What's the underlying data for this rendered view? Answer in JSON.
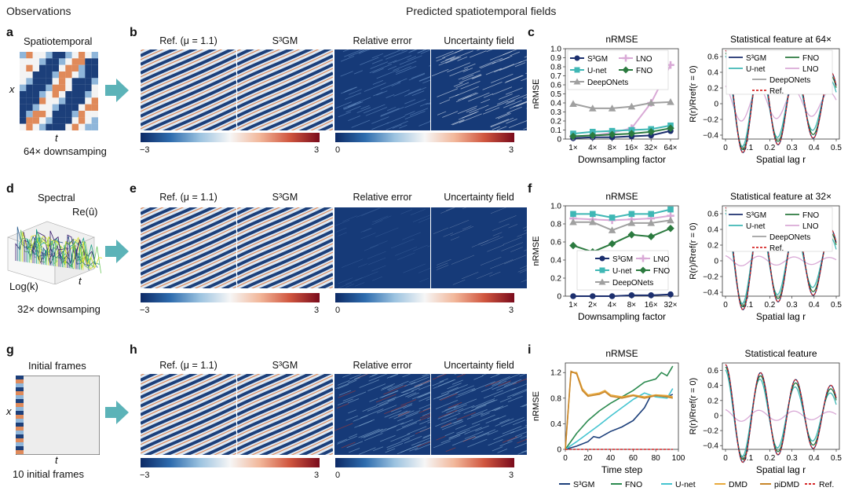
{
  "headers": {
    "observations": "Observations",
    "predicted": "Predicted spatiotemporal fields"
  },
  "rows": [
    {
      "obs_letter": "a",
      "obs_title": "Spatiotemporal",
      "obs_caption": "64× downsamping",
      "axis_x": "x",
      "axis_t": "t",
      "fields_letter": "b",
      "field_titles": [
        "Ref. (μ = 1.1)",
        "S³GM",
        "Relative error",
        "Uncertainty field"
      ],
      "plot_letter": "c"
    },
    {
      "obs_letter": "d",
      "obs_title": "Spectral",
      "obs_caption": "32× downsamping",
      "axis_re": "Re(û)",
      "axis_logk": "Log(k)",
      "axis_t": "t",
      "fields_letter": "e",
      "field_titles": [
        "Ref. (μ = 1.1)",
        "S³GM",
        "Relative error",
        "Uncertainty field"
      ],
      "plot_letter": "f"
    },
    {
      "obs_letter": "g",
      "obs_title": "Initial frames",
      "obs_caption": "10 initial frames",
      "axis_x": "x",
      "axis_t": "t",
      "fields_letter": "h",
      "field_titles": [
        "Ref. (μ = 1.1)",
        "S³GM",
        "Relative error",
        "Uncertainty field"
      ],
      "plot_letter": "i"
    }
  ],
  "colorbars": {
    "left_min": "−3",
    "left_max": "3",
    "right_min": "0",
    "right_max": "3"
  },
  "colors": {
    "dark_blue": "#1c3f7a",
    "light_blue": "#c9ddf0",
    "orange": "#e08a5a",
    "arrow": "#5cb3b8"
  },
  "chart_data": [
    {
      "panel": "c",
      "type": "line",
      "title": "nRMSE",
      "xlabel": "Downsampling factor",
      "ylabel": "nRMSE",
      "categories": [
        "1×",
        "4×",
        "8×",
        "16×",
        "32×",
        "64×"
      ],
      "ylim": [
        0,
        1.0
      ],
      "yticks": [
        "0",
        "0.1",
        "0.2",
        "0.3",
        "0.4",
        "0.5",
        "0.6",
        "0.7",
        "0.8",
        "0.9",
        "1.0"
      ],
      "legend": "top-left",
      "series": [
        {
          "name": "S³GM",
          "color": "#1c2f6e",
          "marker": "circle",
          "values": [
            0.01,
            0.02,
            0.02,
            0.03,
            0.04,
            0.09
          ]
        },
        {
          "name": "LNO",
          "color": "#d9a9d6",
          "marker": "plus",
          "values": [
            0.03,
            0.04,
            0.07,
            0.12,
            0.4,
            0.82
          ]
        },
        {
          "name": "U-net",
          "color": "#3fb7b5",
          "marker": "square",
          "values": [
            0.06,
            0.08,
            0.09,
            0.1,
            0.11,
            0.15
          ]
        },
        {
          "name": "FNO",
          "color": "#2b7a3f",
          "marker": "diamond",
          "values": [
            0.03,
            0.04,
            0.05,
            0.06,
            0.08,
            0.12
          ]
        },
        {
          "name": "DeepONets",
          "color": "#a0a0a0",
          "marker": "triangle",
          "values": [
            0.39,
            0.34,
            0.34,
            0.36,
            0.4,
            0.41
          ]
        }
      ]
    },
    {
      "panel": "c-right",
      "type": "line",
      "title": "Statistical feature at 64×",
      "xlabel": "Spatial lag r",
      "ylabel": "R(r)/Rref(r = 0)",
      "xlim": [
        0,
        0.5
      ],
      "ylim": [
        -0.45,
        0.7
      ],
      "xticks": [
        "0",
        "0.1",
        "0.2",
        "0.3",
        "0.4",
        "0.5"
      ],
      "yticks": [
        "−0.4",
        "−0.2",
        "0",
        "0.2",
        "0.4",
        "0.6"
      ],
      "legend_names": [
        "S³GM",
        "FNO",
        "U-net",
        "LNO",
        "DeepONets",
        "Ref."
      ],
      "legend_colors": [
        "#1c2f6e",
        "#2b7a3f",
        "#3fb7b5",
        "#d9a9d6",
        "#a0a0a0",
        "#d62728"
      ],
      "curves": {
        "damp": 7,
        "freq": 12.6,
        "lno_amp": 0.35
      }
    },
    {
      "panel": "f",
      "type": "line",
      "title": "nRMSE",
      "xlabel": "Downsampling factor",
      "ylabel": "nRMSE",
      "categories": [
        "1×",
        "2×",
        "4×",
        "8×",
        "16×",
        "32×"
      ],
      "ylim": [
        0,
        1.0
      ],
      "yticks": [
        "0",
        "0.2",
        "0.4",
        "0.6",
        "0.8",
        "1.0"
      ],
      "legend": "bottom-center",
      "series": [
        {
          "name": "S³GM",
          "color": "#1c2f6e",
          "marker": "circle",
          "values": [
            0.0,
            0.0,
            0.0,
            0.01,
            0.01,
            0.02
          ]
        },
        {
          "name": "LNO",
          "color": "#d9a9d6",
          "marker": "plus",
          "values": [
            0.86,
            0.85,
            0.84,
            0.85,
            0.86,
            0.89
          ]
        },
        {
          "name": "U-net",
          "color": "#3fb7b5",
          "marker": "square",
          "values": [
            0.91,
            0.91,
            0.87,
            0.91,
            0.91,
            0.96
          ]
        },
        {
          "name": "FNO",
          "color": "#2b7a3f",
          "marker": "diamond",
          "values": [
            0.56,
            0.49,
            0.58,
            0.68,
            0.66,
            0.75
          ]
        },
        {
          "name": "DeepONets",
          "color": "#a0a0a0",
          "marker": "triangle",
          "values": [
            0.82,
            0.82,
            0.73,
            0.81,
            0.81,
            0.84
          ]
        }
      ]
    },
    {
      "panel": "f-right",
      "type": "line",
      "title": "Statistical feature at 32×",
      "xlabel": "Spatial lag r",
      "ylabel": "R(r)/Rref(r = 0)",
      "xlim": [
        0,
        0.5
      ],
      "ylim": [
        -0.45,
        0.7
      ],
      "xticks": [
        "0",
        "0.1",
        "0.2",
        "0.3",
        "0.4",
        "0.5"
      ],
      "yticks": [
        "−0.4",
        "−0.2",
        "0",
        "0.2",
        "0.4",
        "0.6"
      ],
      "legend_names": [
        "S³GM",
        "FNO",
        "U-net",
        "LNO",
        "DeepONets",
        "Ref."
      ],
      "legend_colors": [
        "#1c2f6e",
        "#2b7a3f",
        "#3fb7b5",
        "#d9a9d6",
        "#a0a0a0",
        "#d62728"
      ],
      "curves": {
        "damp": 7,
        "freq": 12.6,
        "lno_amp": 0.1
      }
    },
    {
      "panel": "i",
      "type": "line",
      "title": "nRMSE",
      "xlabel": "Time step",
      "ylabel": "nRMSE",
      "xlim": [
        0,
        100
      ],
      "ylim": [
        0,
        1.35
      ],
      "xticks": [
        "0",
        "20",
        "40",
        "60",
        "80",
        "100"
      ],
      "yticks": [
        "0",
        "0.4",
        "0.8",
        "1.2"
      ],
      "series": [
        {
          "name": "S³GM",
          "color": "#1c3f7a",
          "x": [
            0,
            10,
            20,
            25,
            30,
            40,
            50,
            60,
            70,
            75,
            80,
            90,
            95
          ],
          "values": [
            0.0,
            0.05,
            0.12,
            0.2,
            0.18,
            0.28,
            0.35,
            0.45,
            0.65,
            0.82,
            0.85,
            0.82,
            0.86
          ]
        },
        {
          "name": "FNO",
          "color": "#2b8a4f",
          "x": [
            0,
            10,
            20,
            30,
            40,
            50,
            60,
            70,
            80,
            85,
            90,
            95
          ],
          "values": [
            0.0,
            0.25,
            0.45,
            0.6,
            0.72,
            0.82,
            0.92,
            1.05,
            1.1,
            1.2,
            1.15,
            1.3
          ]
        },
        {
          "name": "U-net",
          "color": "#44c4d0",
          "x": [
            0,
            10,
            20,
            30,
            40,
            50,
            60,
            70,
            75,
            80,
            90,
            95
          ],
          "values": [
            0.0,
            0.12,
            0.25,
            0.38,
            0.52,
            0.65,
            0.78,
            0.88,
            0.85,
            0.82,
            0.8,
            0.95
          ]
        },
        {
          "name": "DMD",
          "color": "#e8a93c",
          "x": [
            0,
            5,
            10,
            15,
            20,
            30,
            35,
            40,
            50,
            60,
            70,
            80,
            90,
            95
          ],
          "values": [
            0.0,
            1.2,
            1.2,
            0.95,
            0.85,
            0.88,
            0.92,
            0.85,
            0.82,
            0.85,
            0.82,
            0.85,
            0.84,
            0.82
          ]
        },
        {
          "name": "piDMD",
          "color": "#c8862a",
          "x": [
            0,
            5,
            10,
            15,
            20,
            30,
            35,
            40,
            50,
            60,
            70,
            80,
            90,
            95
          ],
          "values": [
            0.0,
            1.22,
            1.18,
            0.92,
            0.83,
            0.86,
            0.9,
            0.83,
            0.8,
            0.84,
            0.8,
            0.84,
            0.82,
            0.8
          ]
        },
        {
          "name": "Ref.",
          "color": "#d62728",
          "x": [
            0,
            95
          ],
          "values": [
            0.0,
            0.0
          ]
        }
      ]
    },
    {
      "panel": "i-right",
      "type": "line",
      "title": "Statistical feature",
      "xlabel": "Spatial lag r",
      "ylabel": "R(r)/Rref(r = 0)",
      "xlim": [
        0,
        0.5
      ],
      "ylim": [
        -0.45,
        0.7
      ],
      "xticks": [
        "0",
        "0.1",
        "0.2",
        "0.3",
        "0.4",
        "0.5"
      ],
      "yticks": [
        "−0.4",
        "−0.2",
        "0",
        "0.2",
        "0.4",
        "0.6"
      ],
      "curves": {
        "damp": 7,
        "freq": 12.6,
        "lno_amp": 0.12
      }
    }
  ],
  "bottom_legend": [
    {
      "name": "S³GM",
      "color": "#1c3f7a",
      "dash": false
    },
    {
      "name": "FNO",
      "color": "#2b8a4f",
      "dash": false
    },
    {
      "name": "U-net",
      "color": "#44c4d0",
      "dash": false
    },
    {
      "name": "DMD",
      "color": "#e8a93c",
      "dash": false
    },
    {
      "name": "piDMD",
      "color": "#c8862a",
      "dash": false
    },
    {
      "name": "Ref.",
      "color": "#d62728",
      "dash": true
    }
  ]
}
